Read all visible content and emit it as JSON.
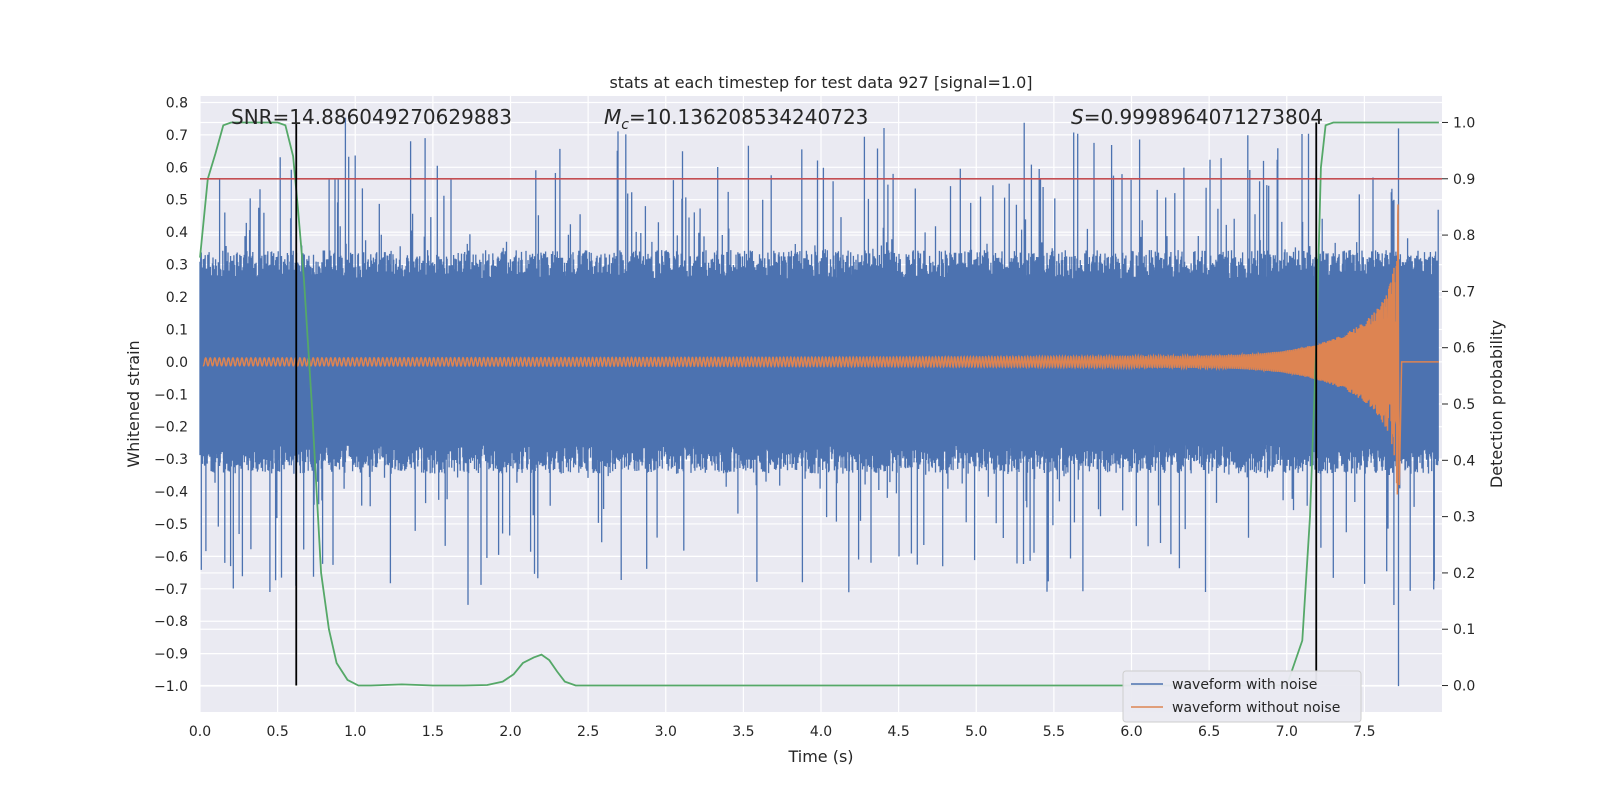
{
  "chart_data": {
    "type": "line",
    "title": "stats at each timestep for test data 927 [signal=1.0]",
    "xlabel": "Time (s)",
    "ylabel": "Whitened strain",
    "y2label": "Detection probability",
    "xlim": [
      0.0,
      8.0
    ],
    "ylim": [
      -1.08,
      0.82
    ],
    "y2lim": [
      -0.047,
      1.047
    ],
    "xticks": [
      "0.0",
      "0.5",
      "1.0",
      "1.5",
      "2.0",
      "2.5",
      "3.0",
      "3.5",
      "4.0",
      "4.5",
      "5.0",
      "5.5",
      "6.0",
      "6.5",
      "7.0",
      "7.5"
    ],
    "yticks": [
      "0.8",
      "0.7",
      "0.6",
      "0.5",
      "0.4",
      "0.3",
      "0.2",
      "0.1",
      "0.0",
      "−0.1",
      "−0.2",
      "−0.3",
      "−0.4",
      "−0.5",
      "−0.6",
      "−0.7",
      "−0.8",
      "−0.9",
      "−1.0"
    ],
    "y2ticks": [
      "1.0",
      "0.9",
      "0.8",
      "0.7",
      "0.6",
      "0.5",
      "0.4",
      "0.3",
      "0.2",
      "0.1",
      "0.0"
    ],
    "grid": true,
    "legend_position": "lower-right",
    "annotations": {
      "snr": "SNR=14.886049270629883",
      "mc_symbol": "M",
      "mc_sub": "c",
      "mc_value": "=10.136208534240723",
      "s_symbol": "S",
      "s_value": "=0.9998964071273804"
    },
    "threshold": {
      "value": 0.9,
      "axis": "y2",
      "color": "#c44e52"
    },
    "detection_markers_x": [
      0.62,
      7.19
    ],
    "series": [
      {
        "name": "waveform with noise",
        "color": "#4c72b0",
        "kind": "noise",
        "envelope": 0.3,
        "peak_max": 0.72,
        "peak_min": -1.0
      },
      {
        "name": "waveform without noise",
        "color": "#dd8452",
        "kind": "chirp",
        "merger_time": 7.72,
        "final_amplitude": 0.55
      },
      {
        "name": "",
        "color": "#55a868",
        "axis": "y2",
        "kind": "probability",
        "x": [
          0.0,
          0.05,
          0.1,
          0.15,
          0.2,
          0.3,
          0.4,
          0.5,
          0.55,
          0.6,
          0.63,
          0.67,
          0.72,
          0.78,
          0.83,
          0.88,
          0.95,
          1.02,
          1.1,
          1.3,
          1.5,
          1.7,
          1.85,
          1.95,
          2.02,
          2.08,
          2.15,
          2.2,
          2.25,
          2.3,
          2.35,
          2.42,
          2.6,
          3.0,
          4.0,
          5.0,
          6.0,
          6.5,
          7.0,
          7.1,
          7.15,
          7.19,
          7.22,
          7.25,
          7.3,
          7.5,
          7.8,
          7.98
        ],
        "y": [
          0.76,
          0.9,
          0.945,
          0.995,
          1.0,
          1.0,
          1.0,
          1.0,
          0.995,
          0.94,
          0.85,
          0.72,
          0.5,
          0.2,
          0.1,
          0.04,
          0.01,
          0.0,
          0.0,
          0.002,
          0.0,
          0.0,
          0.001,
          0.007,
          0.02,
          0.04,
          0.05,
          0.055,
          0.045,
          0.025,
          0.007,
          0.0,
          0.0,
          0.0,
          0.0,
          0.0,
          0.0,
          0.0,
          0.0,
          0.08,
          0.3,
          0.6,
          0.92,
          0.995,
          1.0,
          1.0,
          1.0,
          1.0
        ]
      }
    ]
  }
}
